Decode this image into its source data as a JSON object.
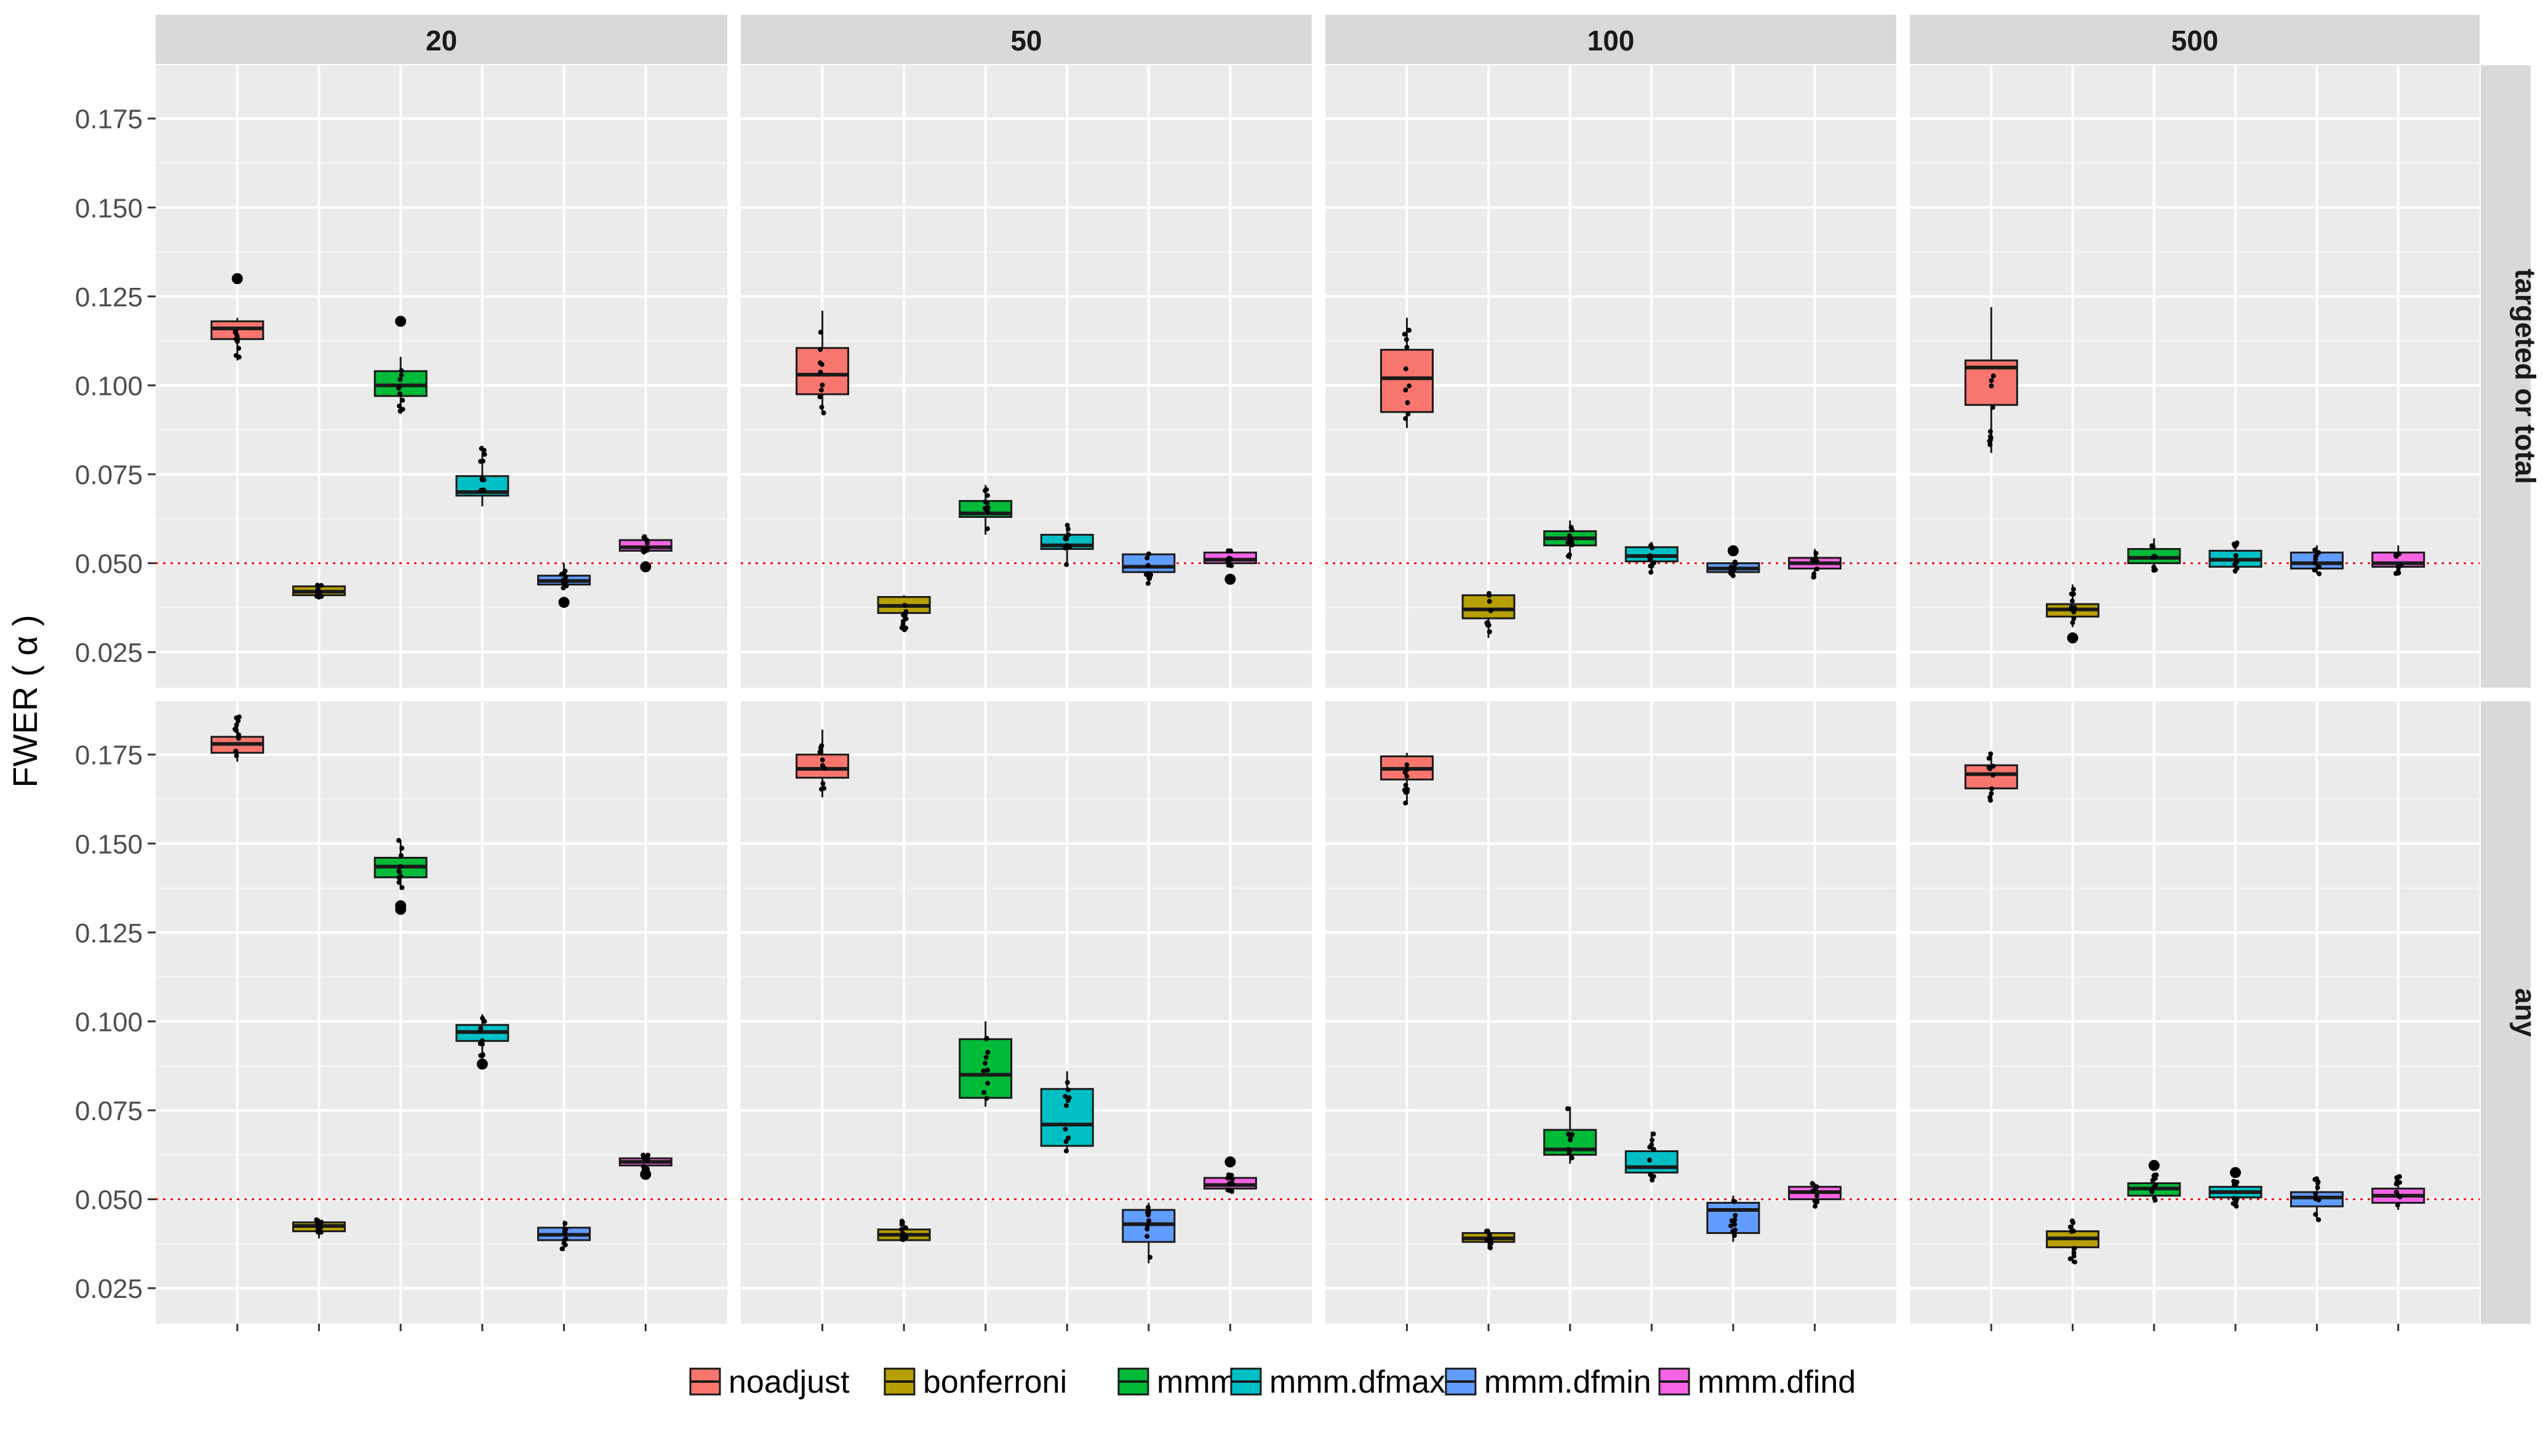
{
  "chart_data": {
    "type": "boxplot",
    "ylabel": "FWER ( α )",
    "ylim": [
      0.015,
      0.19
    ],
    "y_ticks": [
      0.025,
      0.05,
      0.075,
      0.1,
      0.125,
      0.15,
      0.175
    ],
    "y_tick_labels": [
      "0.025",
      "0.050",
      "0.075",
      "0.100",
      "0.125",
      "0.150",
      "0.175"
    ],
    "reference_line": 0.05,
    "column_facet_labels": [
      "20",
      "50",
      "100",
      "500"
    ],
    "row_facet_labels": [
      "targeted or total",
      "any"
    ],
    "legend": {
      "placement": "bottom",
      "entries": [
        "noadjust",
        "bonferroni",
        "mmm",
        "mmm.dfmax",
        "mmm.dfmin",
        "mmm.dfind"
      ]
    },
    "colors": {
      "noadjust": "#F8766D",
      "bonferroni": "#B79F00",
      "mmm": "#00BA38",
      "mmm.dfmax": "#00BFC4",
      "mmm.dfmin": "#619CFF",
      "mmm.dfind": "#F564E3",
      "panel_bg": "#EBEBEB",
      "strip_bg": "#D9D9D9",
      "grid": "#FFFFFF",
      "reference": "#FF0000"
    },
    "methods": [
      "noadjust",
      "bonferroni",
      "mmm",
      "mmm.dfmax",
      "mmm.dfmin",
      "mmm.dfind"
    ],
    "panels": [
      {
        "row": "targeted or total",
        "col": "20",
        "boxes": [
          {
            "method": "noadjust",
            "q1": 0.113,
            "median": 0.116,
            "q3": 0.118,
            "whisker_low": 0.107,
            "whisker_high": 0.119,
            "outliers": [
              0.13
            ]
          },
          {
            "method": "bonferroni",
            "q1": 0.041,
            "median": 0.042,
            "q3": 0.0435,
            "whisker_low": 0.04,
            "whisker_high": 0.044,
            "outliers": []
          },
          {
            "method": "mmm",
            "q1": 0.097,
            "median": 0.1,
            "q3": 0.104,
            "whisker_low": 0.092,
            "whisker_high": 0.108,
            "outliers": [
              0.118
            ]
          },
          {
            "method": "mmm.dfmax",
            "q1": 0.069,
            "median": 0.07,
            "q3": 0.0745,
            "whisker_low": 0.066,
            "whisker_high": 0.083,
            "outliers": []
          },
          {
            "method": "mmm.dfmin",
            "q1": 0.044,
            "median": 0.045,
            "q3": 0.0465,
            "whisker_low": 0.043,
            "whisker_high": 0.05,
            "outliers": [
              0.039
            ]
          },
          {
            "method": "mmm.dfind",
            "q1": 0.0535,
            "median": 0.0545,
            "q3": 0.0565,
            "whisker_low": 0.053,
            "whisker_high": 0.058,
            "outliers": [
              0.049
            ]
          }
        ]
      },
      {
        "row": "targeted or total",
        "col": "50",
        "boxes": [
          {
            "method": "noadjust",
            "q1": 0.0975,
            "median": 0.103,
            "q3": 0.1105,
            "whisker_low": 0.092,
            "whisker_high": 0.121,
            "outliers": []
          },
          {
            "method": "bonferroni",
            "q1": 0.036,
            "median": 0.038,
            "q3": 0.0405,
            "whisker_low": 0.031,
            "whisker_high": 0.041,
            "outliers": []
          },
          {
            "method": "mmm",
            "q1": 0.063,
            "median": 0.064,
            "q3": 0.0675,
            "whisker_low": 0.058,
            "whisker_high": 0.072,
            "outliers": []
          },
          {
            "method": "mmm.dfmax",
            "q1": 0.054,
            "median": 0.055,
            "q3": 0.058,
            "whisker_low": 0.049,
            "whisker_high": 0.061,
            "outliers": []
          },
          {
            "method": "mmm.dfmin",
            "q1": 0.0475,
            "median": 0.049,
            "q3": 0.0525,
            "whisker_low": 0.044,
            "whisker_high": 0.053,
            "outliers": []
          },
          {
            "method": "mmm.dfind",
            "q1": 0.05,
            "median": 0.051,
            "q3": 0.053,
            "whisker_low": 0.049,
            "whisker_high": 0.054,
            "outliers": [
              0.0455
            ]
          }
        ]
      },
      {
        "row": "targeted or total",
        "col": "100",
        "boxes": [
          {
            "method": "noadjust",
            "q1": 0.0925,
            "median": 0.102,
            "q3": 0.11,
            "whisker_low": 0.088,
            "whisker_high": 0.119,
            "outliers": []
          },
          {
            "method": "bonferroni",
            "q1": 0.0345,
            "median": 0.037,
            "q3": 0.041,
            "whisker_low": 0.029,
            "whisker_high": 0.042,
            "outliers": []
          },
          {
            "method": "mmm",
            "q1": 0.055,
            "median": 0.057,
            "q3": 0.059,
            "whisker_low": 0.051,
            "whisker_high": 0.062,
            "outliers": []
          },
          {
            "method": "mmm.dfmax",
            "q1": 0.0505,
            "median": 0.052,
            "q3": 0.0545,
            "whisker_low": 0.047,
            "whisker_high": 0.056,
            "outliers": []
          },
          {
            "method": "mmm.dfmin",
            "q1": 0.0475,
            "median": 0.0485,
            "q3": 0.05,
            "whisker_low": 0.0465,
            "whisker_high": 0.0505,
            "outliers": [
              0.0535
            ]
          },
          {
            "method": "mmm.dfind",
            "q1": 0.0485,
            "median": 0.05,
            "q3": 0.0515,
            "whisker_low": 0.046,
            "whisker_high": 0.054,
            "outliers": []
          }
        ]
      },
      {
        "row": "targeted or total",
        "col": "500",
        "boxes": [
          {
            "method": "noadjust",
            "q1": 0.0945,
            "median": 0.105,
            "q3": 0.107,
            "whisker_low": 0.081,
            "whisker_high": 0.122,
            "outliers": []
          },
          {
            "method": "bonferroni",
            "q1": 0.035,
            "median": 0.037,
            "q3": 0.0385,
            "whisker_low": 0.032,
            "whisker_high": 0.044,
            "outliers": [
              0.029
            ]
          },
          {
            "method": "mmm",
            "q1": 0.05,
            "median": 0.0515,
            "q3": 0.054,
            "whisker_low": 0.048,
            "whisker_high": 0.057,
            "outliers": []
          },
          {
            "method": "mmm.dfmax",
            "q1": 0.049,
            "median": 0.051,
            "q3": 0.0535,
            "whisker_low": 0.047,
            "whisker_high": 0.056,
            "outliers": []
          },
          {
            "method": "mmm.dfmin",
            "q1": 0.0485,
            "median": 0.05,
            "q3": 0.053,
            "whisker_low": 0.047,
            "whisker_high": 0.055,
            "outliers": []
          },
          {
            "method": "mmm.dfind",
            "q1": 0.049,
            "median": 0.05,
            "q3": 0.053,
            "whisker_low": 0.047,
            "whisker_high": 0.055,
            "outliers": []
          }
        ]
      },
      {
        "row": "any",
        "col": "20",
        "boxes": [
          {
            "method": "noadjust",
            "q1": 0.1755,
            "median": 0.178,
            "q3": 0.18,
            "whisker_low": 0.173,
            "whisker_high": 0.186,
            "outliers": []
          },
          {
            "method": "bonferroni",
            "q1": 0.041,
            "median": 0.0425,
            "q3": 0.0435,
            "whisker_low": 0.039,
            "whisker_high": 0.0445,
            "outliers": []
          },
          {
            "method": "mmm",
            "q1": 0.1405,
            "median": 0.1435,
            "q3": 0.146,
            "whisker_low": 0.137,
            "whisker_high": 0.151,
            "outliers": [
              0.1325,
              0.1315
            ]
          },
          {
            "method": "mmm.dfmax",
            "q1": 0.0945,
            "median": 0.097,
            "q3": 0.099,
            "whisker_low": 0.0895,
            "whisker_high": 0.102,
            "outliers": [
              0.088
            ]
          },
          {
            "method": "mmm.dfmin",
            "q1": 0.0385,
            "median": 0.04,
            "q3": 0.042,
            "whisker_low": 0.0355,
            "whisker_high": 0.044,
            "outliers": []
          },
          {
            "method": "mmm.dfind",
            "q1": 0.0595,
            "median": 0.0605,
            "q3": 0.0615,
            "whisker_low": 0.058,
            "whisker_high": 0.0625,
            "outliers": [
              0.057
            ]
          }
        ]
      },
      {
        "row": "any",
        "col": "50",
        "boxes": [
          {
            "method": "noadjust",
            "q1": 0.1685,
            "median": 0.171,
            "q3": 0.175,
            "whisker_low": 0.163,
            "whisker_high": 0.182,
            "outliers": []
          },
          {
            "method": "bonferroni",
            "q1": 0.0385,
            "median": 0.04,
            "q3": 0.0415,
            "whisker_low": 0.038,
            "whisker_high": 0.044,
            "outliers": []
          },
          {
            "method": "mmm",
            "q1": 0.0785,
            "median": 0.085,
            "q3": 0.095,
            "whisker_low": 0.076,
            "whisker_high": 0.1,
            "outliers": []
          },
          {
            "method": "mmm.dfmax",
            "q1": 0.065,
            "median": 0.071,
            "q3": 0.081,
            "whisker_low": 0.063,
            "whisker_high": 0.086,
            "outliers": []
          },
          {
            "method": "mmm.dfmin",
            "q1": 0.038,
            "median": 0.043,
            "q3": 0.047,
            "whisker_low": 0.032,
            "whisker_high": 0.049,
            "outliers": []
          },
          {
            "method": "mmm.dfind",
            "q1": 0.053,
            "median": 0.054,
            "q3": 0.056,
            "whisker_low": 0.052,
            "whisker_high": 0.057,
            "outliers": [
              0.0605
            ]
          }
        ]
      },
      {
        "row": "any",
        "col": "100",
        "boxes": [
          {
            "method": "noadjust",
            "q1": 0.168,
            "median": 0.171,
            "q3": 0.1745,
            "whisker_low": 0.161,
            "whisker_high": 0.1755,
            "outliers": []
          },
          {
            "method": "bonferroni",
            "q1": 0.038,
            "median": 0.039,
            "q3": 0.0405,
            "whisker_low": 0.036,
            "whisker_high": 0.0415,
            "outliers": []
          },
          {
            "method": "mmm",
            "q1": 0.0625,
            "median": 0.064,
            "q3": 0.0695,
            "whisker_low": 0.06,
            "whisker_high": 0.076,
            "outliers": []
          },
          {
            "method": "mmm.dfmax",
            "q1": 0.0575,
            "median": 0.059,
            "q3": 0.0635,
            "whisker_low": 0.055,
            "whisker_high": 0.069,
            "outliers": []
          },
          {
            "method": "mmm.dfmin",
            "q1": 0.0405,
            "median": 0.047,
            "q3": 0.049,
            "whisker_low": 0.038,
            "whisker_high": 0.051,
            "outliers": []
          },
          {
            "method": "mmm.dfind",
            "q1": 0.05,
            "median": 0.052,
            "q3": 0.0535,
            "whisker_low": 0.048,
            "whisker_high": 0.0545,
            "outliers": []
          }
        ]
      },
      {
        "row": "any",
        "col": "500",
        "boxes": [
          {
            "method": "noadjust",
            "q1": 0.1655,
            "median": 0.1695,
            "q3": 0.172,
            "whisker_low": 0.162,
            "whisker_high": 0.1755,
            "outliers": []
          },
          {
            "method": "bonferroni",
            "q1": 0.0365,
            "median": 0.039,
            "q3": 0.041,
            "whisker_low": 0.032,
            "whisker_high": 0.044,
            "outliers": []
          },
          {
            "method": "mmm",
            "q1": 0.051,
            "median": 0.053,
            "q3": 0.0545,
            "whisker_low": 0.049,
            "whisker_high": 0.0575,
            "outliers": [
              0.0595
            ]
          },
          {
            "method": "mmm.dfmax",
            "q1": 0.0505,
            "median": 0.052,
            "q3": 0.0535,
            "whisker_low": 0.048,
            "whisker_high": 0.0555,
            "outliers": [
              0.0575
            ]
          },
          {
            "method": "mmm.dfmin",
            "q1": 0.048,
            "median": 0.0505,
            "q3": 0.052,
            "whisker_low": 0.044,
            "whisker_high": 0.056,
            "outliers": []
          },
          {
            "method": "mmm.dfind",
            "q1": 0.049,
            "median": 0.051,
            "q3": 0.053,
            "whisker_low": 0.047,
            "whisker_high": 0.057,
            "outliers": []
          }
        ]
      }
    ]
  }
}
